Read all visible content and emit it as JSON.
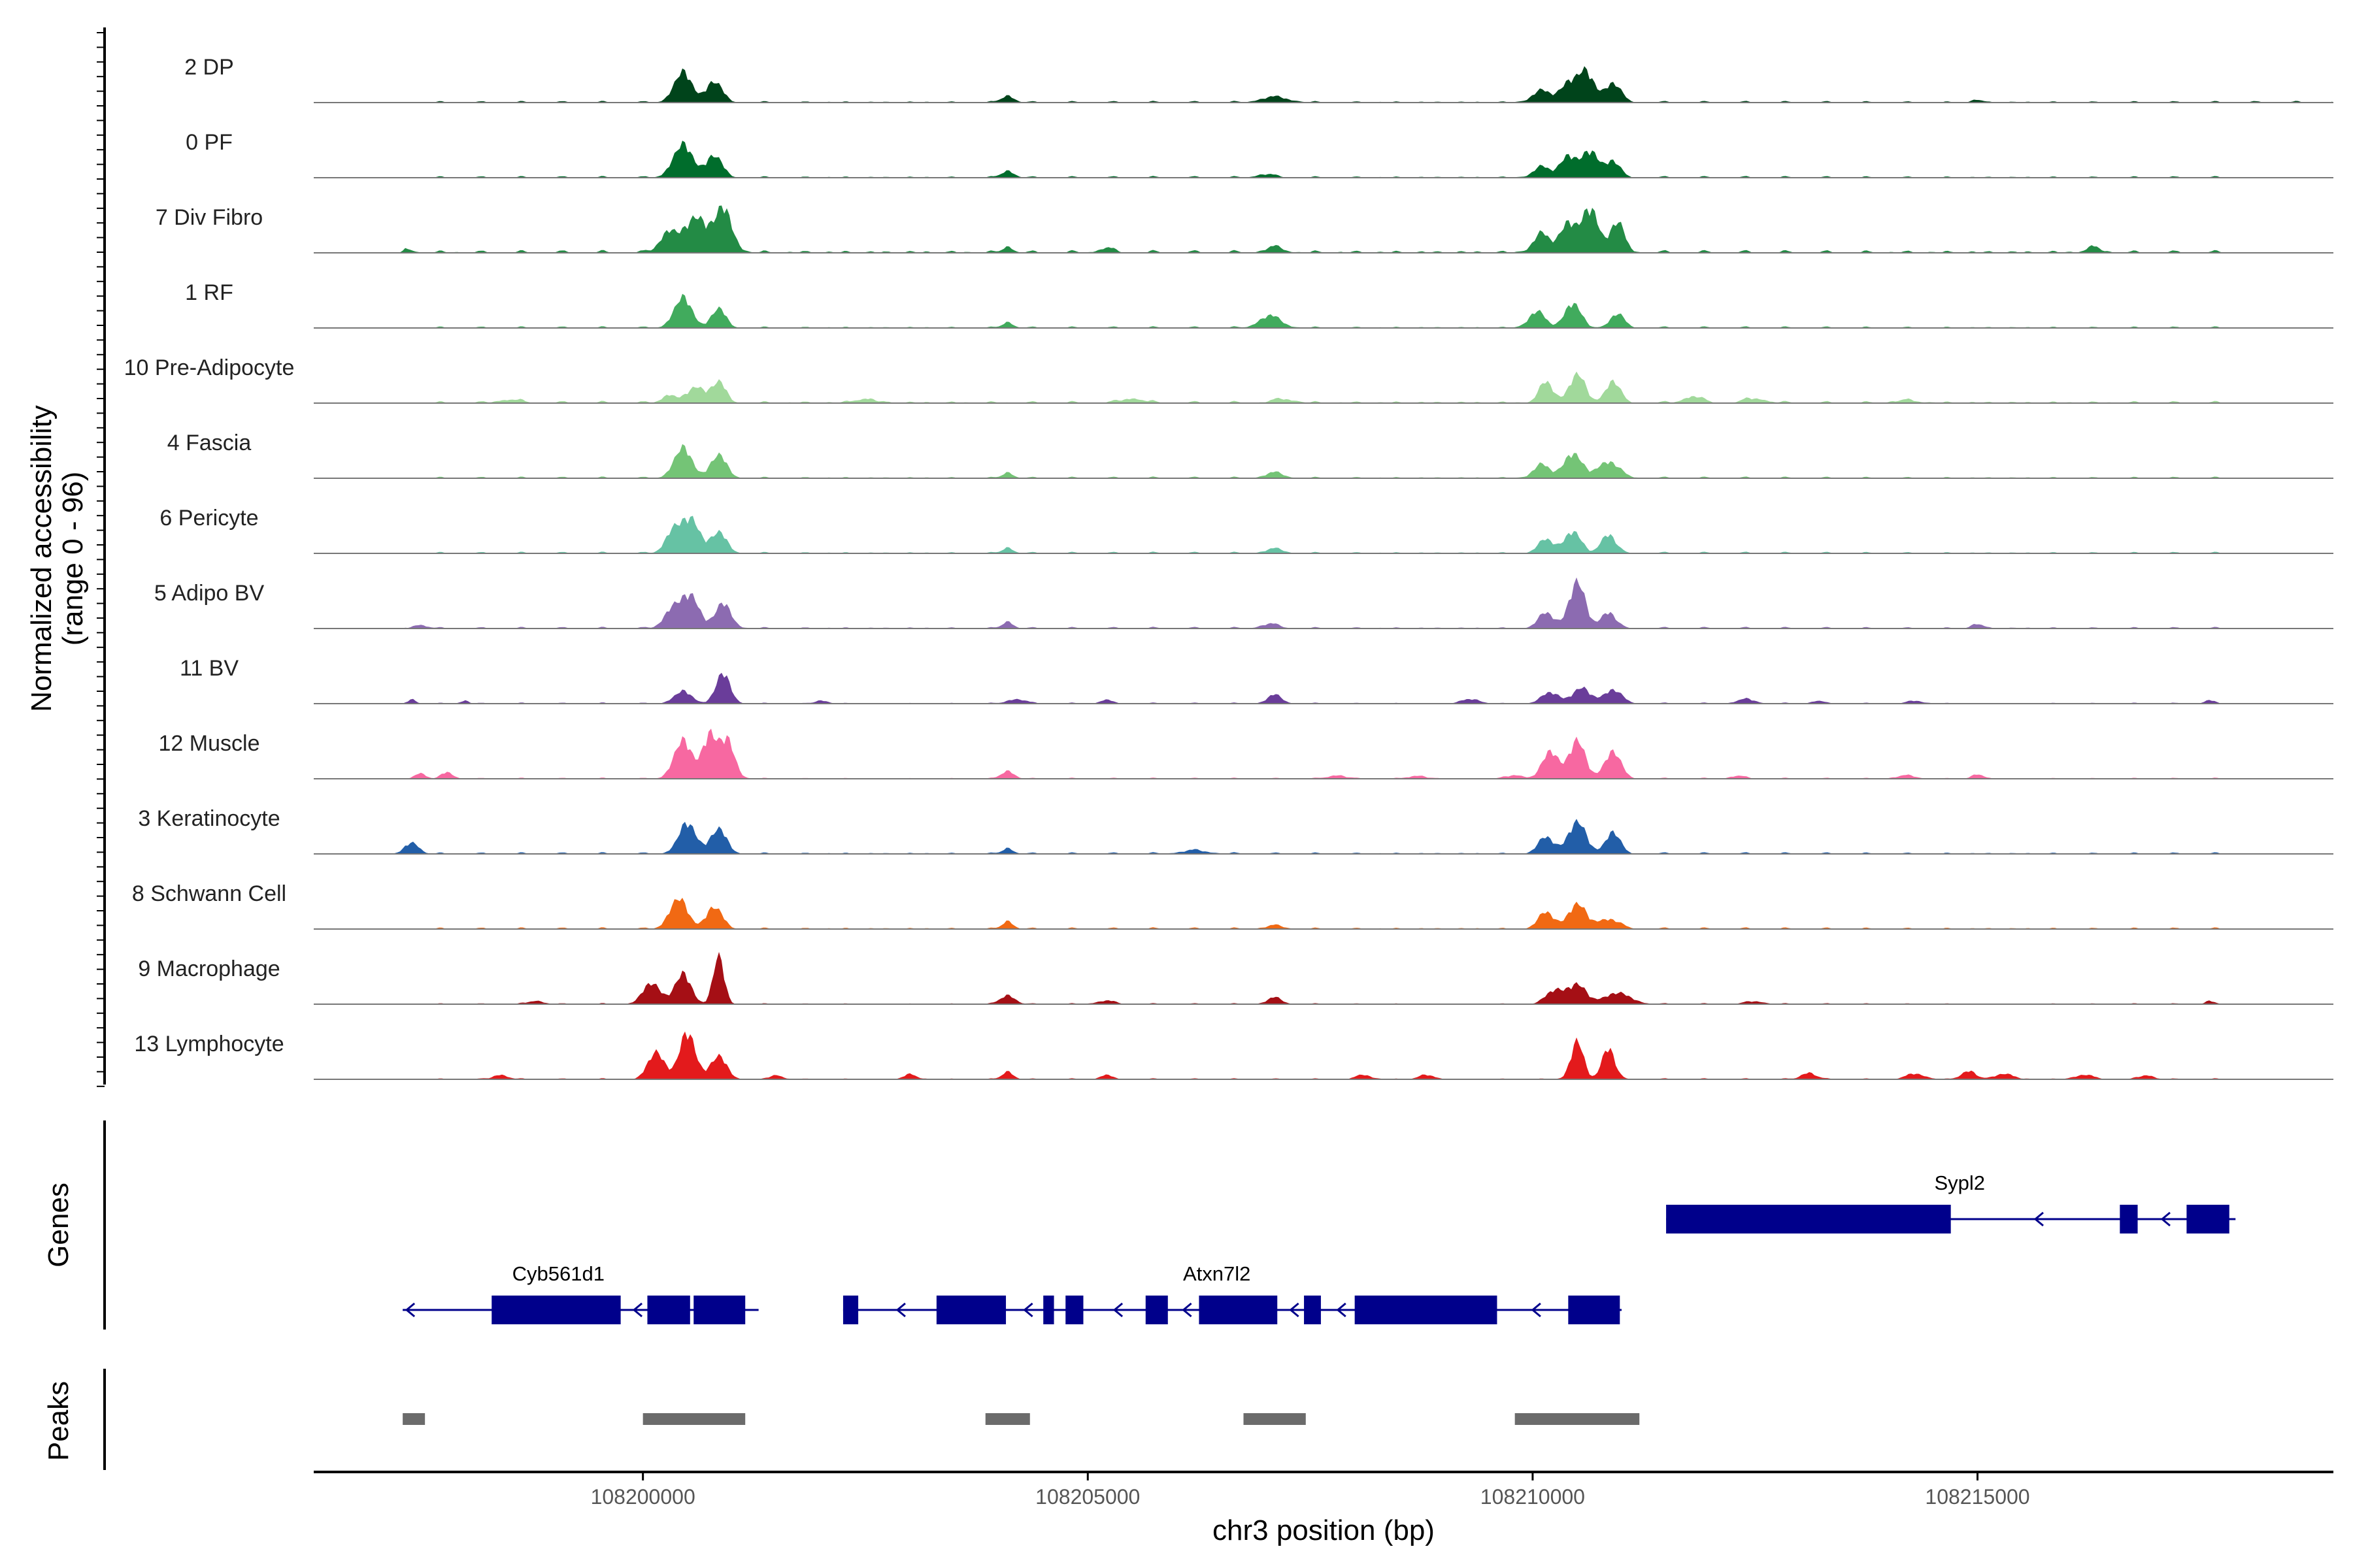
{
  "chart_data": {
    "type": "area",
    "description_kind": "coverage",
    "ylabel": "Normalized accessibility",
    "ylabel_range": "(range 0 - 96)",
    "xlabel": "chr3 position (bp)",
    "xlim": [
      108196300,
      108219000
    ],
    "xticks": [
      108200000,
      108205000,
      108210000,
      108215000
    ],
    "xtick_labels": [
      "108200000",
      "108205000",
      "108210000",
      "108215000"
    ],
    "series": [
      {
        "name": "2 DP",
        "color": "#00441b",
        "peaks": [
          [
            108200450,
            0.55,
            100
          ],
          [
            108200800,
            0.38,
            90
          ],
          [
            108204100,
            0.12,
            70
          ],
          [
            108207100,
            0.1,
            150
          ],
          [
            108210100,
            0.22,
            100
          ],
          [
            108210400,
            0.35,
            90
          ],
          [
            108210600,
            0.55,
            90
          ],
          [
            108210900,
            0.35,
            90
          ],
          [
            108215000,
            0.05,
            50
          ]
        ],
        "baseline": [
          [
            108197300,
            108219000,
            0.03
          ]
        ]
      },
      {
        "name": "0 PF",
        "color": "#006d2c",
        "peaks": [
          [
            108200450,
            0.6,
            110
          ],
          [
            108200800,
            0.4,
            90
          ],
          [
            108204100,
            0.12,
            70
          ],
          [
            108207000,
            0.06,
            100
          ],
          [
            108210100,
            0.2,
            90
          ],
          [
            108210400,
            0.4,
            90
          ],
          [
            108210650,
            0.48,
            90
          ],
          [
            108210900,
            0.3,
            80
          ]
        ],
        "baseline": [
          [
            108197300,
            108218000,
            0.03
          ]
        ]
      },
      {
        "name": "7 Div Fibro",
        "color": "#238b45",
        "peaks": [
          [
            108200300,
            0.4,
            100
          ],
          [
            108200600,
            0.65,
            110
          ],
          [
            108200900,
            0.8,
            100
          ],
          [
            108197350,
            0.08,
            40
          ],
          [
            108204100,
            0.1,
            60
          ],
          [
            108205200,
            0.08,
            80
          ],
          [
            108207100,
            0.1,
            100
          ],
          [
            108210100,
            0.35,
            90
          ],
          [
            108210400,
            0.55,
            90
          ],
          [
            108210650,
            0.8,
            90
          ],
          [
            108210950,
            0.55,
            80
          ],
          [
            108216300,
            0.1,
            80
          ]
        ],
        "baseline": [
          [
            108197300,
            108218000,
            0.05
          ]
        ]
      },
      {
        "name": "1 RF",
        "color": "#41ab5d",
        "peaks": [
          [
            108200450,
            0.55,
            100
          ],
          [
            108200850,
            0.35,
            80
          ],
          [
            108204100,
            0.1,
            60
          ],
          [
            108207050,
            0.22,
            120
          ],
          [
            108210050,
            0.3,
            90
          ],
          [
            108210450,
            0.45,
            90
          ],
          [
            108210950,
            0.25,
            80
          ]
        ],
        "baseline": [
          [
            108197300,
            108218000,
            0.03
          ]
        ]
      },
      {
        "name": "10 Pre-Adipocyte",
        "color": "#a1d99b",
        "peaks": [
          [
            108200300,
            0.15,
            80
          ],
          [
            108200600,
            0.3,
            90
          ],
          [
            108200850,
            0.38,
            80
          ],
          [
            108198500,
            0.06,
            120
          ],
          [
            108202500,
            0.07,
            120
          ],
          [
            108205500,
            0.08,
            120
          ],
          [
            108207200,
            0.07,
            120
          ],
          [
            108210150,
            0.38,
            80
          ],
          [
            108210500,
            0.52,
            90
          ],
          [
            108210900,
            0.4,
            80
          ],
          [
            108211800,
            0.12,
            100
          ],
          [
            108212500,
            0.08,
            120
          ],
          [
            108214200,
            0.05,
            120
          ]
        ],
        "baseline": [
          [
            108197500,
            108218000,
            0.04
          ]
        ]
      },
      {
        "name": "4 Fascia",
        "color": "#74c476",
        "peaks": [
          [
            108200450,
            0.55,
            100
          ],
          [
            108200850,
            0.42,
            90
          ],
          [
            108204100,
            0.1,
            60
          ],
          [
            108207100,
            0.1,
            100
          ],
          [
            108210100,
            0.25,
            90
          ],
          [
            108210450,
            0.45,
            100
          ],
          [
            108210850,
            0.3,
            120
          ]
        ],
        "baseline": [
          [
            108197300,
            108218000,
            0.03
          ]
        ]
      },
      {
        "name": "6 Pericyte",
        "color": "#66c2a4",
        "peaks": [
          [
            108200350,
            0.45,
            90
          ],
          [
            108200550,
            0.6,
            90
          ],
          [
            108200850,
            0.38,
            90
          ],
          [
            108204100,
            0.1,
            60
          ],
          [
            108207100,
            0.08,
            100
          ],
          [
            108210150,
            0.25,
            90
          ],
          [
            108210450,
            0.4,
            90
          ],
          [
            108210850,
            0.35,
            80
          ]
        ],
        "baseline": [
          [
            108197300,
            108218000,
            0.03
          ]
        ]
      },
      {
        "name": "5 Adipo BV",
        "color": "#8c6bb1",
        "peaks": [
          [
            108200350,
            0.4,
            100
          ],
          [
            108200550,
            0.55,
            90
          ],
          [
            108200900,
            0.45,
            90
          ],
          [
            108197500,
            0.06,
            80
          ],
          [
            108204100,
            0.12,
            60
          ],
          [
            108207050,
            0.08,
            100
          ],
          [
            108210150,
            0.28,
            90
          ],
          [
            108210500,
            0.85,
            90
          ],
          [
            108210850,
            0.3,
            80
          ],
          [
            108215000,
            0.08,
            60
          ]
        ],
        "baseline": [
          [
            108197300,
            108218000,
            0.03
          ]
        ]
      },
      {
        "name": "11 BV",
        "color": "#6a3d9a",
        "peaks": [
          [
            108200450,
            0.22,
            100
          ],
          [
            108200900,
            0.55,
            80
          ],
          [
            108197400,
            0.08,
            40
          ],
          [
            108198000,
            0.06,
            40
          ],
          [
            108202000,
            0.06,
            60
          ],
          [
            108204200,
            0.08,
            100
          ],
          [
            108205200,
            0.07,
            60
          ],
          [
            108207100,
            0.16,
            80
          ],
          [
            108209300,
            0.08,
            100
          ],
          [
            108210200,
            0.2,
            100
          ],
          [
            108210550,
            0.28,
            100
          ],
          [
            108210900,
            0.25,
            100
          ],
          [
            108212400,
            0.08,
            100
          ],
          [
            108213200,
            0.05,
            60
          ],
          [
            108214300,
            0.05,
            80
          ],
          [
            108217600,
            0.06,
            50
          ]
        ],
        "baseline": [
          [
            108197300,
            108218000,
            0.02
          ]
        ]
      },
      {
        "name": "12 Muscle",
        "color": "#f768a1",
        "peaks": [
          [
            108200450,
            0.7,
            100
          ],
          [
            108200750,
            0.8,
            80
          ],
          [
            108200950,
            0.7,
            80
          ],
          [
            108197500,
            0.1,
            60
          ],
          [
            108197800,
            0.12,
            60
          ],
          [
            108204100,
            0.14,
            70
          ],
          [
            108207800,
            0.06,
            100
          ],
          [
            108208700,
            0.05,
            100
          ],
          [
            108209800,
            0.06,
            100
          ],
          [
            108210200,
            0.5,
            90
          ],
          [
            108210500,
            0.7,
            90
          ],
          [
            108210900,
            0.5,
            90
          ],
          [
            108212300,
            0.05,
            80
          ],
          [
            108214200,
            0.06,
            100
          ],
          [
            108215000,
            0.08,
            60
          ]
        ],
        "baseline": [
          [
            108197300,
            108218000,
            0.02
          ]
        ]
      },
      {
        "name": "3 Keratinocyte",
        "color": "#225ea8",
        "peaks": [
          [
            108197400,
            0.2,
            80
          ],
          [
            108200500,
            0.55,
            100
          ],
          [
            108200850,
            0.45,
            90
          ],
          [
            108204100,
            0.1,
            60
          ],
          [
            108206200,
            0.06,
            150
          ],
          [
            108210150,
            0.3,
            90
          ],
          [
            108210500,
            0.58,
            100
          ],
          [
            108210900,
            0.4,
            80
          ]
        ],
        "baseline": [
          [
            108197300,
            108218000,
            0.03
          ]
        ]
      },
      {
        "name": "8 Schwann Cell",
        "color": "#f16913",
        "peaks": [
          [
            108200400,
            0.55,
            100
          ],
          [
            108200800,
            0.4,
            90
          ],
          [
            108204100,
            0.14,
            60
          ],
          [
            108207100,
            0.06,
            100
          ],
          [
            108210150,
            0.3,
            90
          ],
          [
            108210500,
            0.45,
            100
          ],
          [
            108210850,
            0.18,
            120
          ]
        ],
        "baseline": [
          [
            108197300,
            108218000,
            0.03
          ]
        ]
      },
      {
        "name": "9 Macrophage",
        "color": "#a50f15",
        "peaks": [
          [
            108200100,
            0.38,
            100
          ],
          [
            108200450,
            0.55,
            90
          ],
          [
            108200850,
            0.9,
            60
          ],
          [
            108198800,
            0.06,
            80
          ],
          [
            108204100,
            0.16,
            80
          ],
          [
            108205200,
            0.06,
            100
          ],
          [
            108207100,
            0.12,
            80
          ],
          [
            108210250,
            0.25,
            100
          ],
          [
            108210500,
            0.35,
            100
          ],
          [
            108210950,
            0.2,
            150
          ],
          [
            108212500,
            0.05,
            100
          ],
          [
            108217600,
            0.06,
            40
          ]
        ],
        "baseline": [
          [
            108197300,
            108218000,
            0.02
          ]
        ]
      },
      {
        "name": "13 Lymphocyte",
        "color": "#e31a1c",
        "peaks": [
          [
            108200150,
            0.5,
            90
          ],
          [
            108200500,
            0.85,
            90
          ],
          [
            108200850,
            0.42,
            90
          ],
          [
            108198400,
            0.08,
            80
          ],
          [
            108201500,
            0.08,
            60
          ],
          [
            108203000,
            0.09,
            70
          ],
          [
            108204100,
            0.14,
            60
          ],
          [
            108205200,
            0.08,
            60
          ],
          [
            108208100,
            0.08,
            80
          ],
          [
            108208800,
            0.08,
            80
          ],
          [
            108210500,
            0.7,
            70
          ],
          [
            108210850,
            0.58,
            70
          ],
          [
            108213100,
            0.12,
            80
          ],
          [
            108214300,
            0.1,
            100
          ],
          [
            108214900,
            0.15,
            80
          ],
          [
            108215300,
            0.1,
            100
          ],
          [
            108216200,
            0.08,
            100
          ],
          [
            108216900,
            0.07,
            80
          ]
        ],
        "baseline": [
          [
            108197300,
            108218000,
            0.02
          ]
        ]
      }
    ],
    "genes": {
      "track_label": "Genes",
      "color": "#00008b",
      "items": [
        {
          "name": "Sypl2",
          "row": 0,
          "strand": "-",
          "start": 108211500,
          "end": 108217900,
          "exons": [
            [
              108211500,
              108214700
            ],
            [
              108216600,
              108216800
            ],
            [
              108217350,
              108217830
            ]
          ]
        },
        {
          "name": "Cyb561d1",
          "row": 1,
          "strand": "-",
          "start": 108197300,
          "end": 108201300,
          "exons": [
            [
              108198300,
              108199750
            ],
            [
              108200050,
              108200530
            ],
            [
              108200570,
              108201150
            ]
          ]
        },
        {
          "name": "Atxn7l2",
          "row": 1,
          "strand": "-",
          "start": 108202250,
          "end": 108211000,
          "exons": [
            [
              108202250,
              108202420
            ],
            [
              108203300,
              108204080
            ],
            [
              108204500,
              108204620
            ],
            [
              108204750,
              108204950
            ],
            [
              108205650,
              108205900
            ],
            [
              108206250,
              108207130
            ],
            [
              108207430,
              108207620
            ],
            [
              108208000,
              108209600
            ],
            [
              108210400,
              108210980
            ]
          ]
        }
      ]
    },
    "peaks_track": {
      "track_label": "Peaks",
      "color": "#6b6b6b",
      "regions": [
        [
          108197300,
          108197550
        ],
        [
          108200000,
          108201150
        ],
        [
          108203850,
          108204350
        ],
        [
          108206750,
          108207450
        ],
        [
          108209800,
          108211200
        ]
      ]
    }
  }
}
